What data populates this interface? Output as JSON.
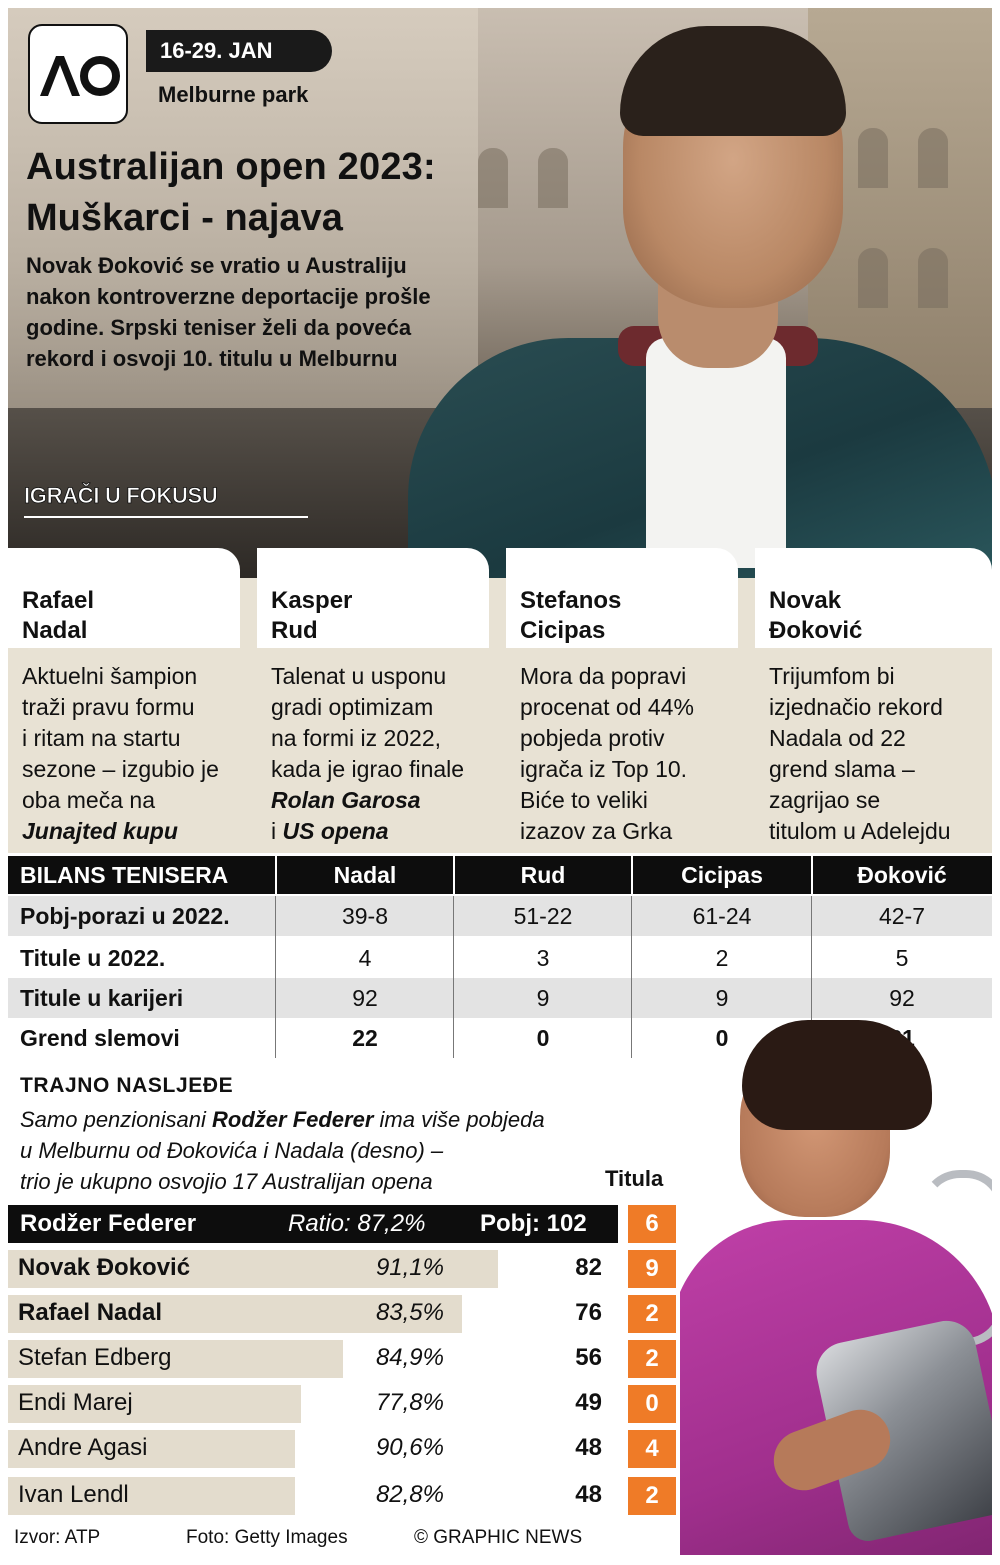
{
  "header": {
    "logo_text": "AO",
    "dates": "16-29. JAN",
    "venue": "Melburne park",
    "title_line1": "Australijan open 2023:",
    "title_line2": "Muškarci - najava",
    "intro": "Novak Đoković se vratio u Australiju nakon kontroverzne deportacije prošle godine. Srpski teniser želi da poveća rekord i osvoji 10. titulu u Melburnu",
    "focus_label": "IGRAČI U FOKUSU"
  },
  "players": [
    {
      "name_line1": "Rafael",
      "name_line2": "Nadal",
      "desc_lines": [
        "Aktuelni šampion",
        "traži pravu formu",
        "i ritam na startu",
        "sezone – izgubio je",
        "oba meča na"
      ],
      "desc_emph": "Junajted kupu"
    },
    {
      "name_line1": "Kasper",
      "name_line2": "Rud",
      "desc_lines": [
        "Talenat u usponu",
        "gradi optimizam",
        "na formi iz 2022,",
        "kada je igrao finale"
      ],
      "desc_emph": "Rolan Garosa",
      "desc_tail_pre": "i ",
      "desc_tail_emph": "US opena"
    },
    {
      "name_line1": "Stefanos",
      "name_line2": "Cicipas",
      "desc_lines": [
        "Mora da popravi",
        "procenat od 44%",
        "pobjeda protiv",
        "igrača iz Top 10.",
        "Biće to veliki",
        "izazov za Grka"
      ]
    },
    {
      "name_line1": "Novak",
      "name_line2": "Đoković",
      "desc_lines": [
        "Trijumfom bi",
        "izjednačio rekord",
        "Nadala od 22",
        "grend slama –",
        "zagrijao se",
        "titulom u Adelejdu"
      ]
    }
  ],
  "stats": {
    "header_label": "BILANS TENISERA",
    "columns": [
      "Nadal",
      "Rud",
      "Cicipas",
      "Đoković"
    ],
    "rows": [
      {
        "label": "Pobj-porazi u 2022.",
        "values": [
          "39-8",
          "51-22",
          "61-24",
          "42-7"
        ]
      },
      {
        "label": "Titule u 2022.",
        "values": [
          "4",
          "3",
          "2",
          "5"
        ]
      },
      {
        "label": "Titule u karijeri",
        "values": [
          "92",
          "9",
          "9",
          "92"
        ]
      },
      {
        "label": "Grend slemovi",
        "values": [
          "22",
          "0",
          "0",
          "21"
        ]
      }
    ]
  },
  "legacy": {
    "heading": "TRAJNO NASLJEĐE",
    "sub_pre": "Samo penzionisani ",
    "sub_emph": "Rodžer Federer",
    "sub_line1_post": " ima više pobjeda",
    "sub_line2": "u Melburnu od Đokovića i Nadala (desno) –",
    "sub_line3": "trio je ukupno osvojio 17 Australijan opena",
    "titula_label": "Titula",
    "leader": {
      "name": "Rodžer Federer",
      "ratio": "Ratio: 87,2%",
      "wins": "Pobj: 102",
      "titles": "6"
    },
    "rows": [
      {
        "name": "Novak Đoković",
        "ratio": "91,1%",
        "wins": "82",
        "titles": "9",
        "bold": true,
        "share": 0.804
      },
      {
        "name": "Rafael Nadal",
        "ratio": "83,5%",
        "wins": "76",
        "titles": "2",
        "bold": true,
        "share": 0.745
      },
      {
        "name": "Stefan Edberg",
        "ratio": "84,9%",
        "wins": "56",
        "titles": "2",
        "bold": false,
        "share": 0.549
      },
      {
        "name": "Endi Marej",
        "ratio": "77,8%",
        "wins": "49",
        "titles": "0",
        "bold": false,
        "share": 0.48
      },
      {
        "name": "Andre Agasi",
        "ratio": "90,6%",
        "wins": "48",
        "titles": "4",
        "bold": false,
        "share": 0.471
      },
      {
        "name": "Ivan Lendl",
        "ratio": "82,8%",
        "wins": "48",
        "titles": "2",
        "bold": false,
        "share": 0.471
      }
    ]
  },
  "footer": {
    "source": "Izvor: ATP",
    "photo": "Foto: Getty Images",
    "credit": "© GRAPHIC NEWS"
  },
  "colors": {
    "accent_orange": "#ef7b27",
    "bar_beige": "#e3dccd",
    "card_beige": "#e8e2d4",
    "header_black": "#0d0d0d"
  }
}
